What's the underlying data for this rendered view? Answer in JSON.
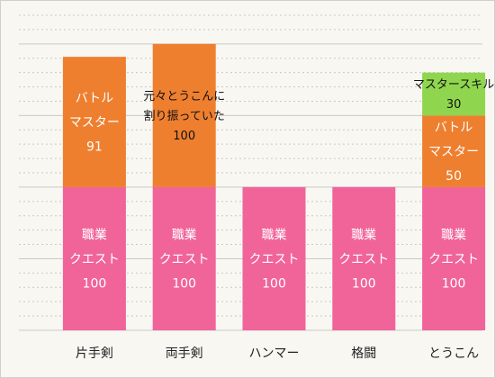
{
  "chart_data": {
    "type": "bar",
    "stacked": true,
    "grid": true,
    "categories": [
      "片手剣",
      "両手剣",
      "ハンマー",
      "格闘",
      "とうこん"
    ],
    "bars": [
      {
        "category": "片手剣",
        "segments": [
          {
            "label": [
              "職業",
              "クエスト",
              "100"
            ],
            "value": 100,
            "color": "#f0649a",
            "text_color": "#ffffff"
          },
          {
            "label": [
              "バトル",
              "マスター",
              "91"
            ],
            "value": 91,
            "color": "#ee7f2f",
            "text_color": "#ffffff"
          }
        ]
      },
      {
        "category": "両手剣",
        "segments": [
          {
            "label": [
              "職業",
              "クエスト",
              "100"
            ],
            "value": 100,
            "color": "#f0649a",
            "text_color": "#ffffff"
          },
          {
            "label": [
              "元々とうこんに",
              "割り振っていた",
              "100"
            ],
            "value": 100,
            "color": "#ee7f2f",
            "text_color": "#111111"
          }
        ]
      },
      {
        "category": "ハンマー",
        "segments": [
          {
            "label": [
              "職業",
              "クエスト",
              "100"
            ],
            "value": 100,
            "color": "#f0649a",
            "text_color": "#ffffff"
          }
        ]
      },
      {
        "category": "格闘",
        "segments": [
          {
            "label": [
              "職業",
              "クエスト",
              "100"
            ],
            "value": 100,
            "color": "#f0649a",
            "text_color": "#ffffff"
          }
        ]
      },
      {
        "category": "とうこん",
        "segments": [
          {
            "label": [
              "職業",
              "クエスト",
              "100"
            ],
            "value": 100,
            "color": "#f0649a",
            "text_color": "#ffffff"
          },
          {
            "label": [
              "バトル",
              "マスター",
              "50"
            ],
            "value": 50,
            "color": "#ee7f2f",
            "text_color": "#ffffff"
          },
          {
            "label": [
              "マスタースキル",
              "30"
            ],
            "value": 30,
            "color": "#8fd64e",
            "text_color": "#111111"
          }
        ]
      }
    ],
    "ylim": [
      0,
      220
    ]
  }
}
